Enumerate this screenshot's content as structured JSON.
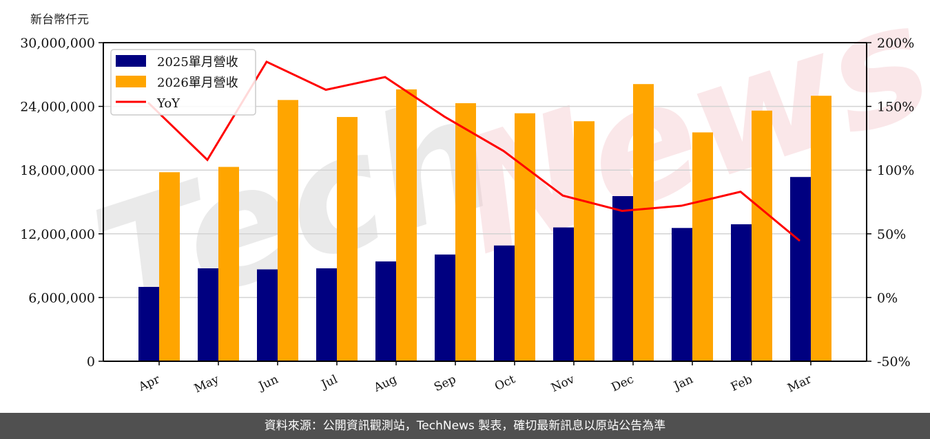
{
  "unit_label": "新台幣仟元",
  "footer": {
    "text": "資料來源：公開資訊觀測站，TechNews 製表，確切最新訊息以原站公告為準"
  },
  "watermark": {
    "text": "TechNews"
  },
  "colors": {
    "series_2025": "#000080",
    "series_2026": "#FFA500",
    "yoy": "#FF0000",
    "grid": "#d3d3d3",
    "footer_bg": "#505050"
  },
  "chart_data": {
    "type": "bar",
    "title": "",
    "xlabel": "",
    "ylabel": "新台幣仟元",
    "y2label": "",
    "categories": [
      "Apr",
      "May",
      "Jun",
      "Jul",
      "Aug",
      "Sep",
      "Oct",
      "Nov",
      "Dec",
      "Jan",
      "Feb",
      "Mar"
    ],
    "series": [
      {
        "name": "2025單月營收",
        "type": "bar",
        "axis": "left",
        "values": [
          7000000,
          8750000,
          8650000,
          8750000,
          9400000,
          10050000,
          10900000,
          12600000,
          15550000,
          12550000,
          12900000,
          17350000
        ]
      },
      {
        "name": "2026單月營收",
        "type": "bar",
        "axis": "left",
        "values": [
          17800000,
          18300000,
          24600000,
          23000000,
          25600000,
          24300000,
          23350000,
          22600000,
          26100000,
          21550000,
          23600000,
          25000000
        ]
      },
      {
        "name": "YoY",
        "type": "line",
        "axis": "right",
        "unit": "%",
        "values": [
          153,
          108,
          185,
          163,
          173,
          142,
          115,
          80,
          68,
          72,
          83,
          44.5
        ]
      }
    ],
    "ylim": [
      0,
      30000000
    ],
    "y2lim": [
      -50,
      200
    ],
    "yticks": [
      0,
      6000000,
      12000000,
      18000000,
      24000000,
      30000000
    ],
    "ytick_labels": [
      "0",
      "6,000,000",
      "12,000,000",
      "18,000,000",
      "24,000,000",
      "30,000,000"
    ],
    "y2ticks": [
      -50,
      0,
      50,
      100,
      150,
      200
    ],
    "y2tick_labels": [
      "-50%",
      "0%",
      "50%",
      "100%",
      "150%",
      "200%"
    ],
    "grid": true,
    "legend_position": "upper left",
    "legend": [
      "2025單月營收",
      "2026單月營收",
      "YoY"
    ]
  }
}
